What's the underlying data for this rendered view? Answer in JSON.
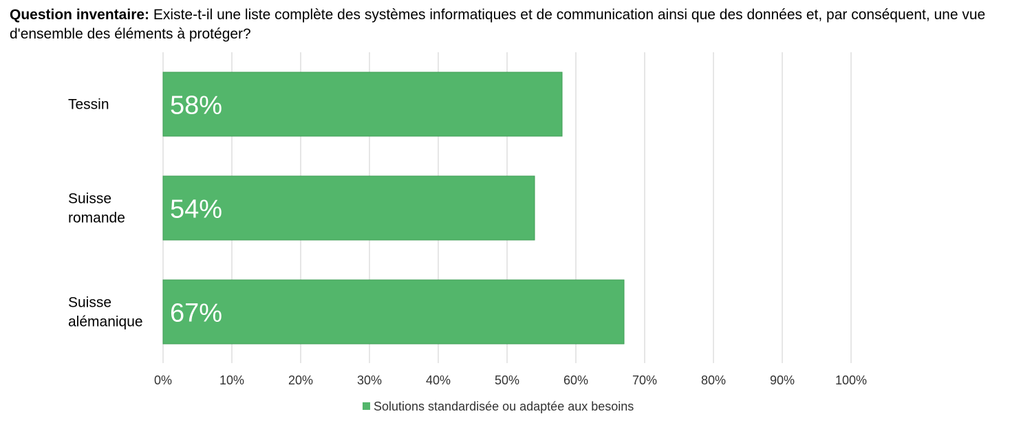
{
  "question": {
    "label": "Question inventaire:",
    "text": "Existe-t-il une liste complète des systèmes informatiques et de communication ainsi que des données et, par conséquent, une vue d'ensemble des éléments à protéger?"
  },
  "chart_data": {
    "type": "bar",
    "orientation": "horizontal",
    "categories": [
      [
        "Tessin"
      ],
      [
        "Suisse",
        "romande"
      ],
      [
        "Suisse",
        "alémanique"
      ]
    ],
    "series": [
      {
        "name": "Solutions standardisée ou adaptée aux besoins",
        "values": [
          58,
          54,
          67
        ],
        "labels": [
          "58%",
          "54%",
          "67%"
        ],
        "color": "#53b66b",
        "border_color": "#3f9e56"
      }
    ],
    "x_ticks": [
      "0%",
      "10%",
      "20%",
      "30%",
      "40%",
      "50%",
      "60%",
      "70%",
      "80%",
      "90%",
      "100%"
    ],
    "xlim": [
      0,
      100
    ],
    "grid": true,
    "grid_color": "#d9d9d9",
    "legend_position": "bottom"
  }
}
